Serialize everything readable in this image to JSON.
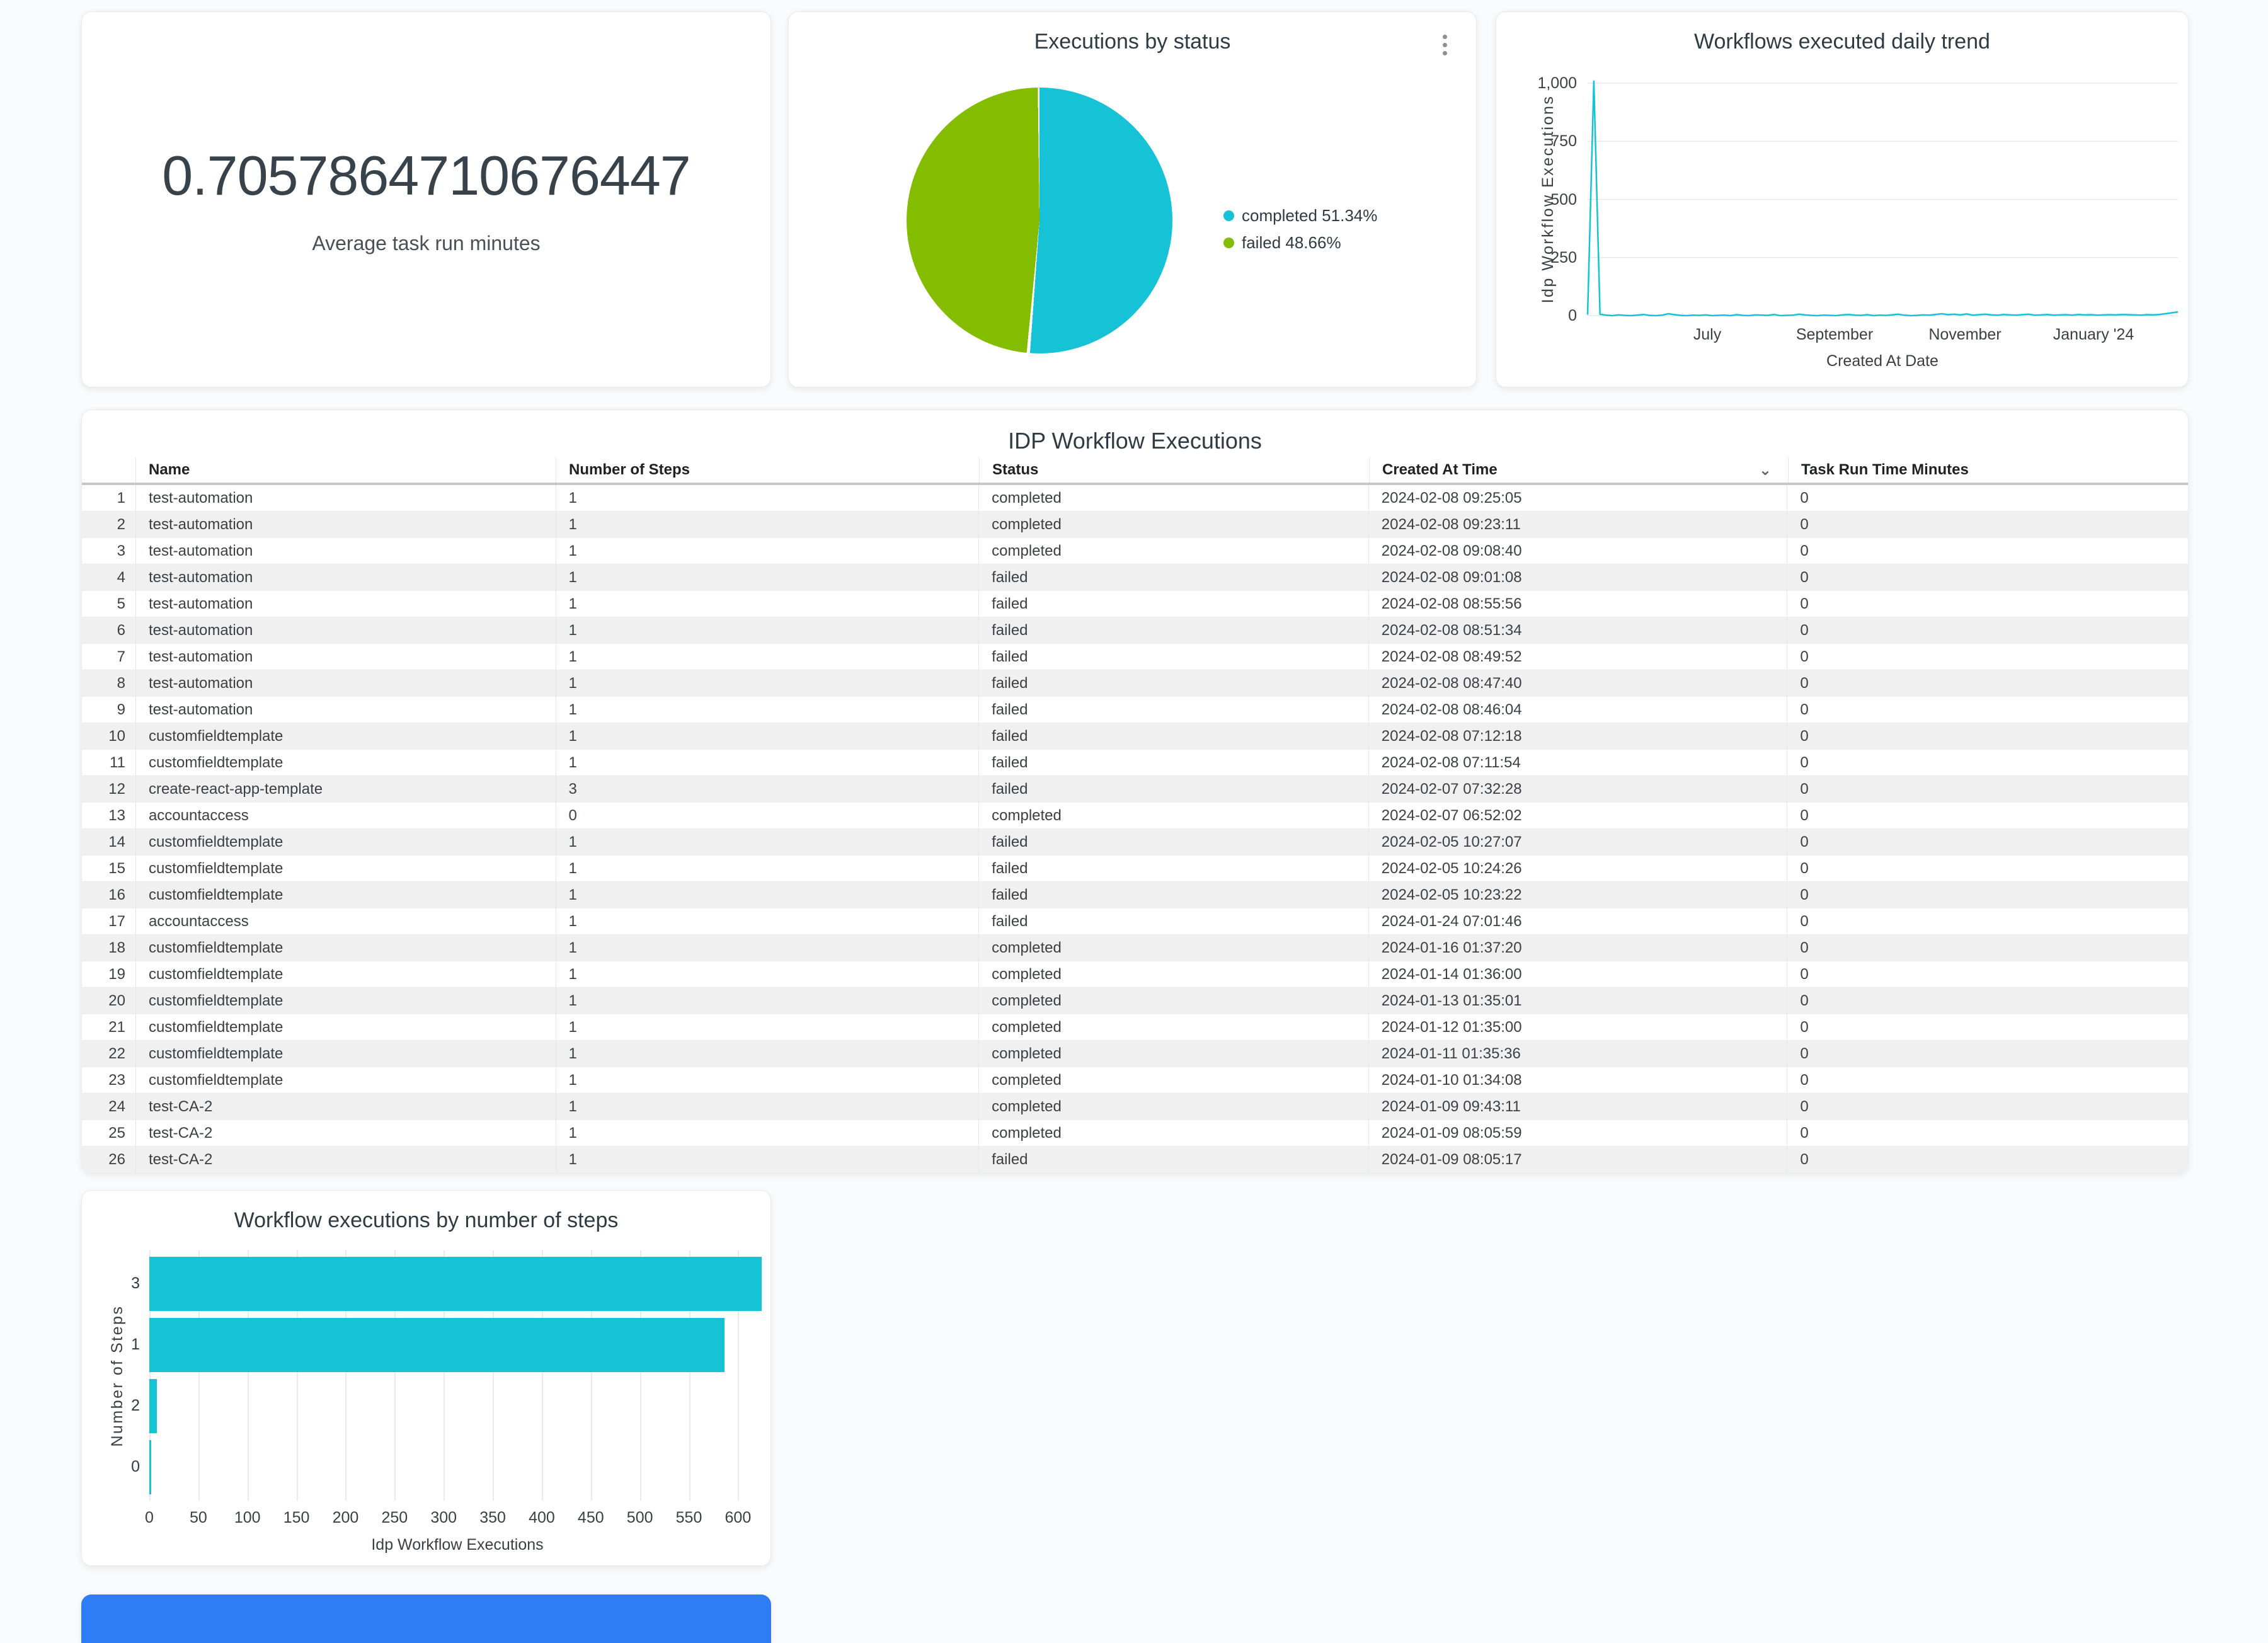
{
  "colors": {
    "accent_cyan": "#16C3D6",
    "accent_green": "#84BD00",
    "partial_card_blue": "#2E7DF7",
    "grid_gray": "#e6e8ea"
  },
  "scorecard": {
    "value": "0.7057864710676447",
    "label": "Average task run minutes"
  },
  "table": {
    "title": "IDP Workflow Executions",
    "headers": [
      "Name",
      "Number of Steps",
      "Status",
      "Created At Time",
      "Task Run Time Minutes"
    ],
    "sorted_column": "Created At Time",
    "sort_direction": "descending",
    "rows": [
      [
        "1",
        "test-automation",
        "1",
        "completed",
        "2024-02-08 09:25:05",
        "0"
      ],
      [
        "2",
        "test-automation",
        "1",
        "completed",
        "2024-02-08 09:23:11",
        "0"
      ],
      [
        "3",
        "test-automation",
        "1",
        "completed",
        "2024-02-08 09:08:40",
        "0"
      ],
      [
        "4",
        "test-automation",
        "1",
        "failed",
        "2024-02-08 09:01:08",
        "0"
      ],
      [
        "5",
        "test-automation",
        "1",
        "failed",
        "2024-02-08 08:55:56",
        "0"
      ],
      [
        "6",
        "test-automation",
        "1",
        "failed",
        "2024-02-08 08:51:34",
        "0"
      ],
      [
        "7",
        "test-automation",
        "1",
        "failed",
        "2024-02-08 08:49:52",
        "0"
      ],
      [
        "8",
        "test-automation",
        "1",
        "failed",
        "2024-02-08 08:47:40",
        "0"
      ],
      [
        "9",
        "test-automation",
        "1",
        "failed",
        "2024-02-08 08:46:04",
        "0"
      ],
      [
        "10",
        "customfieldtemplate",
        "1",
        "failed",
        "2024-02-08 07:12:18",
        "0"
      ],
      [
        "11",
        "customfieldtemplate",
        "1",
        "failed",
        "2024-02-08 07:11:54",
        "0"
      ],
      [
        "12",
        "create-react-app-template",
        "3",
        "failed",
        "2024-02-07 07:32:28",
        "0"
      ],
      [
        "13",
        "accountaccess",
        "0",
        "completed",
        "2024-02-07 06:52:02",
        "0"
      ],
      [
        "14",
        "customfieldtemplate",
        "1",
        "failed",
        "2024-02-05 10:27:07",
        "0"
      ],
      [
        "15",
        "customfieldtemplate",
        "1",
        "failed",
        "2024-02-05 10:24:26",
        "0"
      ],
      [
        "16",
        "customfieldtemplate",
        "1",
        "failed",
        "2024-02-05 10:23:22",
        "0"
      ],
      [
        "17",
        "accountaccess",
        "1",
        "failed",
        "2024-01-24 07:01:46",
        "0"
      ],
      [
        "18",
        "customfieldtemplate",
        "1",
        "completed",
        "2024-01-16 01:37:20",
        "0"
      ],
      [
        "19",
        "customfieldtemplate",
        "1",
        "completed",
        "2024-01-14 01:36:00",
        "0"
      ],
      [
        "20",
        "customfieldtemplate",
        "1",
        "completed",
        "2024-01-13 01:35:01",
        "0"
      ],
      [
        "21",
        "customfieldtemplate",
        "1",
        "completed",
        "2024-01-12 01:35:00",
        "0"
      ],
      [
        "22",
        "customfieldtemplate",
        "1",
        "completed",
        "2024-01-11 01:35:36",
        "0"
      ],
      [
        "23",
        "customfieldtemplate",
        "1",
        "completed",
        "2024-01-10 01:34:08",
        "0"
      ],
      [
        "24",
        "test-CA-2",
        "1",
        "completed",
        "2024-01-09 09:43:11",
        "0"
      ],
      [
        "25",
        "test-CA-2",
        "1",
        "completed",
        "2024-01-09 08:05:59",
        "0"
      ],
      [
        "26",
        "test-CA-2",
        "1",
        "failed",
        "2024-01-09 08:05:17",
        "0"
      ]
    ]
  },
  "chart_data": [
    {
      "id": "executions_by_status",
      "type": "pie",
      "title": "Executions by status",
      "categories": [
        "completed",
        "failed"
      ],
      "values": [
        51.34,
        48.66
      ],
      "unit": "%",
      "slice_colors": [
        "#16C3D6",
        "#84BD00"
      ],
      "legend_labels": [
        "completed 51.34%",
        "failed 48.66%"
      ],
      "legend_position": "right"
    },
    {
      "id": "workflows_daily_trend",
      "type": "line",
      "title": "Workflows executed daily trend",
      "xlabel": "Created At Date",
      "ylabel": "Idp Workflow Executions",
      "ylim": [
        0,
        1000
      ],
      "yticks": [
        0,
        250,
        500,
        750,
        1000
      ],
      "ytick_labels": [
        "0",
        "250",
        "500",
        "750",
        "1,000"
      ],
      "xtick_labels": [
        "July",
        "September",
        "November",
        "January '24"
      ],
      "grid": "horizontal",
      "line_color": "#16C3D6",
      "series": [
        {
          "name": "Idp Workflow Executions",
          "values": [
            4,
            1009,
            6,
            2,
            0,
            3,
            1,
            0,
            2,
            5,
            1,
            0,
            2,
            8,
            4,
            1,
            0,
            2,
            1,
            3,
            0,
            1,
            2,
            0,
            4,
            1,
            0,
            3,
            2,
            1,
            5,
            0,
            1,
            2,
            6,
            3,
            1,
            0,
            2,
            1,
            0,
            3,
            5,
            2,
            1,
            4,
            0,
            2,
            1,
            3,
            6,
            2,
            0,
            1,
            3,
            2,
            5,
            8,
            4,
            6,
            3,
            7,
            2,
            4,
            6,
            3,
            2,
            5,
            3,
            2,
            4,
            6,
            2,
            3,
            5,
            2,
            3,
            4,
            2,
            5,
            3,
            4,
            2,
            3,
            4,
            3,
            5,
            4,
            3,
            2,
            4,
            3,
            5,
            8,
            12,
            16
          ]
        }
      ]
    },
    {
      "id": "executions_by_steps",
      "type": "bar",
      "orientation": "horizontal",
      "title": "Workflow executions by number of steps",
      "xlabel": "Idp Workflow Executions",
      "ylabel": "Number of Steps",
      "categories": [
        "3",
        "1",
        "2",
        "0"
      ],
      "values": [
        624,
        586,
        8,
        2
      ],
      "xlim": [
        0,
        628
      ],
      "xticks": [
        0,
        50,
        100,
        150,
        200,
        250,
        300,
        350,
        400,
        450,
        500,
        550,
        600
      ],
      "bar_color": "#16C3D6",
      "grid": "vertical"
    }
  ]
}
